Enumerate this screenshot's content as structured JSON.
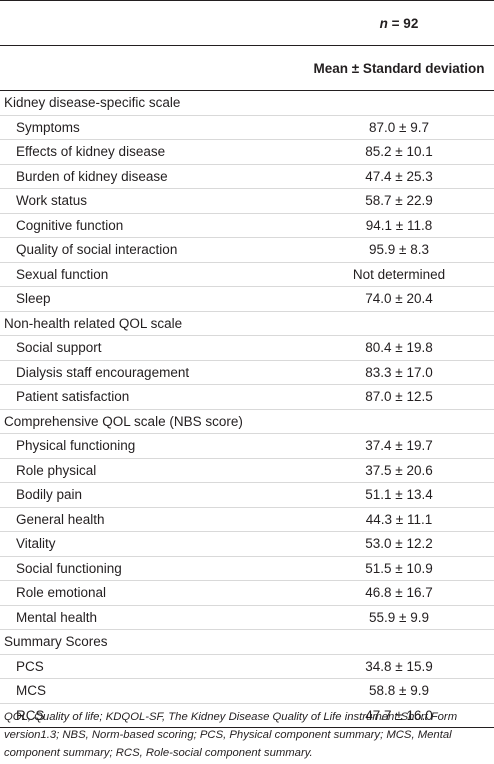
{
  "header": {
    "n_prefix": "n",
    "n_value": "= 92",
    "column_label": "Mean ± Standard deviation"
  },
  "sections": [
    {
      "title": "Kidney disease-specific scale",
      "rows": [
        {
          "label": "Symptoms",
          "value": "87.0 ± 9.7"
        },
        {
          "label": "Effects of kidney disease",
          "value": "85.2 ± 10.1"
        },
        {
          "label": "Burden of kidney disease",
          "value": "47.4 ± 25.3"
        },
        {
          "label": "Work status",
          "value": "58.7 ± 22.9"
        },
        {
          "label": "Cognitive function",
          "value": "94.1 ± 11.8"
        },
        {
          "label": "Quality of social interaction",
          "value": "95.9 ± 8.3"
        },
        {
          "label": "Sexual function",
          "value": "Not determined"
        },
        {
          "label": "Sleep",
          "value": "74.0 ± 20.4"
        }
      ]
    },
    {
      "title": "Non-health related QOL scale",
      "rows": [
        {
          "label": "Social support",
          "value": "80.4 ± 19.8"
        },
        {
          "label": "Dialysis staff encouragement",
          "value": "83.3 ± 17.0"
        },
        {
          "label": "Patient satisfaction",
          "value": "87.0 ± 12.5"
        }
      ]
    },
    {
      "title": "Comprehensive QOL scale (NBS score)",
      "rows": [
        {
          "label": "Physical functioning",
          "value": "37.4 ± 19.7"
        },
        {
          "label": "Role physical",
          "value": "37.5 ± 20.6"
        },
        {
          "label": "Bodily pain",
          "value": "51.1 ± 13.4"
        },
        {
          "label": "General health",
          "value": "44.3 ± 11.1"
        },
        {
          "label": "Vitality",
          "value": "53.0 ± 12.2"
        },
        {
          "label": "Social functioning",
          "value": "51.5 ± 10.9"
        },
        {
          "label": "Role emotional",
          "value": "46.8 ± 16.7"
        },
        {
          "label": "Mental health",
          "value": "55.9 ± 9.9"
        }
      ]
    },
    {
      "title": "Summary Scores",
      "rows": [
        {
          "label": "PCS",
          "value": "34.8 ± 15.9"
        },
        {
          "label": "MCS",
          "value": "58.8 ± 9.9"
        },
        {
          "label": "RCS",
          "value": "47.7 ± 16.0"
        }
      ]
    }
  ],
  "footnote": "QOL, Quality of life; KDQOL-SF, The Kidney Disease Quality of Life instrument Short Form version1.3; NBS, Norm-based scoring; PCS, Physical component summary; MCS, Mental component summary; RCS, Role-social component summary."
}
